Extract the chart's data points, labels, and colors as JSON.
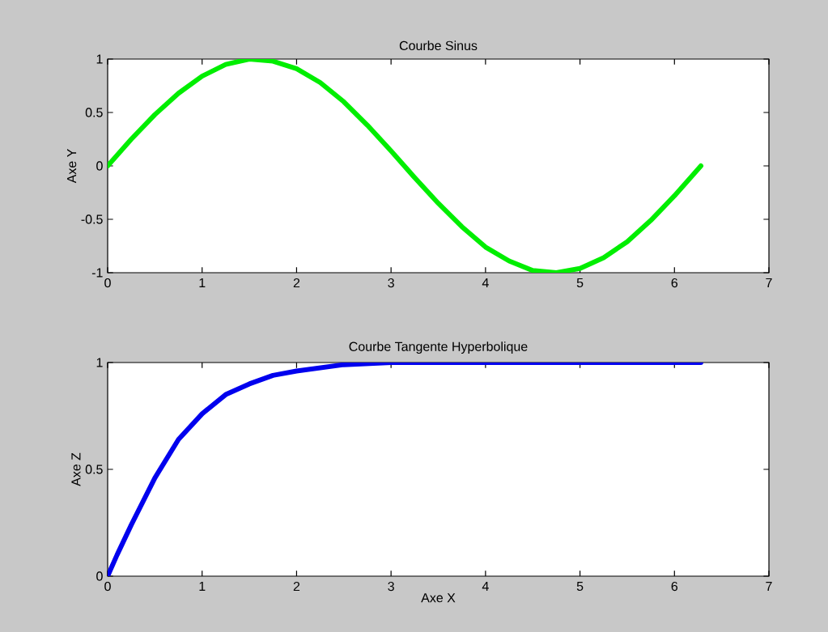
{
  "chart_data": [
    {
      "type": "line",
      "title": "Courbe Sinus",
      "ylabel": "Axe Y",
      "color": "#00ee00",
      "x": [
        0,
        0.25,
        0.5,
        0.75,
        1,
        1.25,
        1.5,
        1.75,
        2,
        2.25,
        2.5,
        2.75,
        3,
        3.25,
        3.5,
        3.75,
        4,
        4.25,
        4.5,
        4.75,
        5,
        5.25,
        5.5,
        5.75,
        6,
        6.28
      ],
      "values": [
        0,
        0.25,
        0.48,
        0.68,
        0.84,
        0.95,
        1.0,
        0.98,
        0.91,
        0.78,
        0.6,
        0.38,
        0.14,
        -0.11,
        -0.35,
        -0.57,
        -0.76,
        -0.89,
        -0.98,
        -1.0,
        -0.96,
        -0.86,
        -0.71,
        -0.51,
        -0.28,
        0
      ],
      "xlim": [
        0,
        7
      ],
      "ylim": [
        -1,
        1
      ],
      "xticks": [
        0,
        1,
        2,
        3,
        4,
        5,
        6,
        7
      ],
      "yticks": [
        -1,
        -0.5,
        0,
        0.5,
        1
      ],
      "grid": false
    },
    {
      "type": "line",
      "title": "Courbe Tangente Hyperbolique",
      "xlabel": "Axe X",
      "ylabel": "Axe Z",
      "color": "#0000ee",
      "x": [
        0,
        0.1,
        0.25,
        0.5,
        0.75,
        1,
        1.25,
        1.5,
        1.75,
        2,
        2.5,
        3,
        4,
        5,
        6.28
      ],
      "values": [
        0,
        0.1,
        0.24,
        0.46,
        0.64,
        0.76,
        0.85,
        0.9,
        0.94,
        0.96,
        0.99,
        1.0,
        1.0,
        1.0,
        1.0
      ],
      "xlim": [
        0,
        7
      ],
      "ylim": [
        0,
        1
      ],
      "xticks": [
        0,
        1,
        2,
        3,
        4,
        5,
        6,
        7
      ],
      "yticks": [
        0,
        0.5,
        1
      ],
      "grid": false
    }
  ]
}
